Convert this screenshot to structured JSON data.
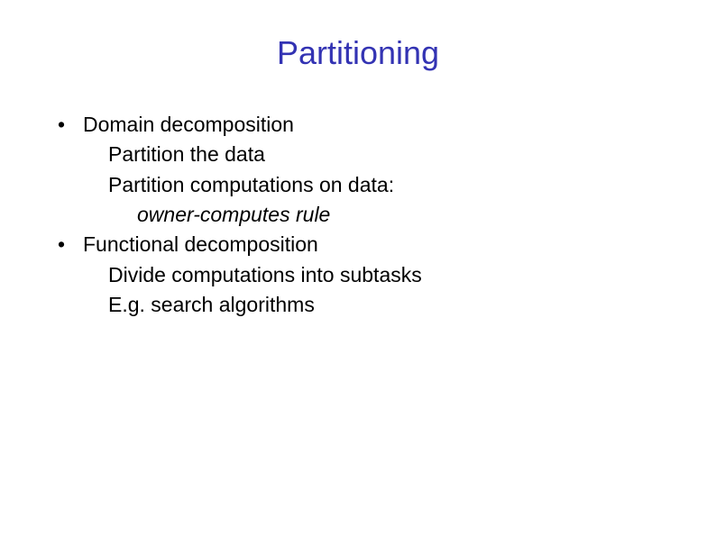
{
  "title": "Partitioning",
  "colors": {
    "title": "#3333b3",
    "body": "#000000",
    "background": "#ffffff"
  },
  "typography": {
    "title_fontsize": 36,
    "body_fontsize": 23,
    "font_family": "Arial"
  },
  "bullets": [
    {
      "text": "Domain decomposition",
      "subs": [
        {
          "text": "Partition the data",
          "style": "normal"
        },
        {
          "text": "Partition computations on data:",
          "style": "normal"
        },
        {
          "text": "owner-computes rule",
          "style": "italic",
          "indent": 2
        }
      ]
    },
    {
      "text": "Functional decomposition",
      "subs": [
        {
          "text": "Divide computations into subtasks",
          "style": "normal"
        },
        {
          "text": "E.g. search algorithms",
          "style": "normal"
        }
      ]
    }
  ],
  "bullet_char": "•"
}
